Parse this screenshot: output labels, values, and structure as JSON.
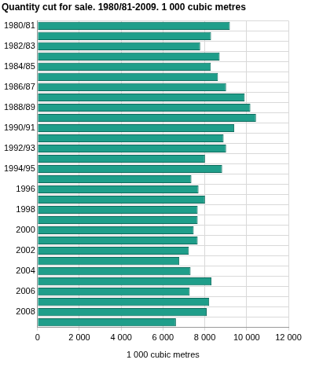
{
  "chart_data": {
    "type": "bar",
    "orientation": "horizontal",
    "title": "Quantity cut for sale. 1980/81-2009. 1 000 cubic metres",
    "x_label": "1 000 cubic metres",
    "categories": [
      "1980/81",
      null,
      "1982/83",
      null,
      "1984/85",
      null,
      "1986/87",
      null,
      "1988/89",
      null,
      "1990/91",
      null,
      "1992/93",
      null,
      "1994/95",
      null,
      "1996",
      null,
      "1998",
      null,
      "2000",
      null,
      "2002",
      null,
      "2004",
      null,
      "2006",
      null,
      "2008",
      null
    ],
    "values": [
      9200,
      8300,
      7780,
      8710,
      8290,
      8630,
      9020,
      9910,
      10180,
      10450,
      9410,
      8900,
      9020,
      8010,
      8830,
      7360,
      7700,
      8010,
      7660,
      7660,
      7470,
      7660,
      7240,
      6780,
      7320,
      8320,
      7280,
      8210,
      8090,
      6620
    ],
    "color": "#1f9e8a",
    "xlim": [
      0,
      12000
    ],
    "xticks": [
      0,
      {
        "value": 2000,
        "label": "2 000"
      },
      {
        "value": 4000,
        "label": "4 000"
      },
      {
        "value": 6000,
        "label": "6 000"
      },
      {
        "value": 8000,
        "label": "8 000"
      },
      {
        "value": 10000,
        "label": "10 000"
      },
      {
        "value": 12000,
        "label": "12 000"
      }
    ],
    "grid": true
  }
}
